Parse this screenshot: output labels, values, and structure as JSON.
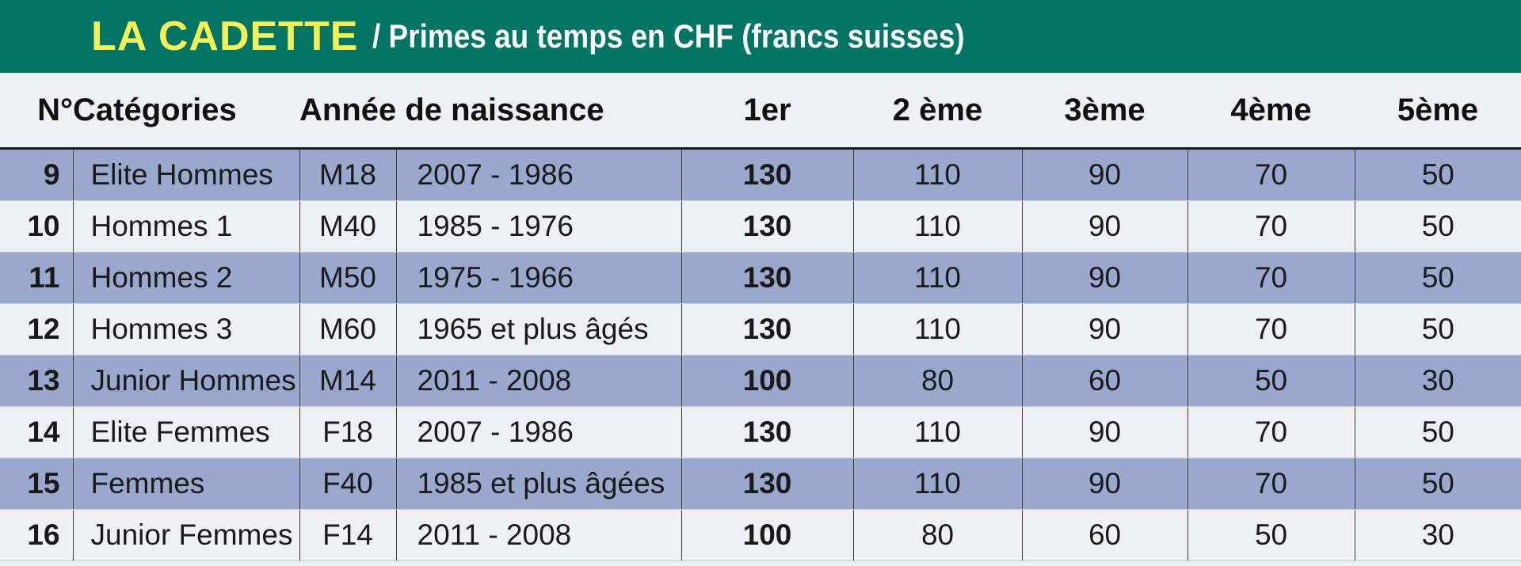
{
  "title": {
    "main": "LA CADETTE",
    "sub": "/ Primes au temps en CHF (francs suisses)"
  },
  "headers": {
    "num": "N°",
    "category": "Catégories",
    "birth_year": "Année de naissance",
    "p1": "1er",
    "p2": "2 ème",
    "p3": "3ème",
    "p4": "4ème",
    "p5": "5ème"
  },
  "rows": [
    {
      "num": "9",
      "category": "Elite Hommes",
      "code": "M18",
      "years": "2007 - 1986",
      "p1": "130",
      "p2": "110",
      "p3": "90",
      "p4": "70",
      "p5": "50"
    },
    {
      "num": "10",
      "category": "Hommes 1",
      "code": "M40",
      "years": "1985 - 1976",
      "p1": "130",
      "p2": "110",
      "p3": "90",
      "p4": "70",
      "p5": "50"
    },
    {
      "num": "11",
      "category": "Hommes 2",
      "code": "M50",
      "years": "1975 - 1966",
      "p1": "130",
      "p2": "110",
      "p3": "90",
      "p4": "70",
      "p5": "50"
    },
    {
      "num": "12",
      "category": "Hommes 3",
      "code": "M60",
      "years": "1965 et plus âgés",
      "p1": "130",
      "p2": "110",
      "p3": "90",
      "p4": "70",
      "p5": "50"
    },
    {
      "num": "13",
      "category": "Junior Hommes",
      "code": "M14",
      "years": "2011 - 2008",
      "p1": "100",
      "p2": "80",
      "p3": "60",
      "p4": "50",
      "p5": "30"
    },
    {
      "num": "14",
      "category": "Elite Femmes",
      "code": "F18",
      "years": "2007 - 1986",
      "p1": "130",
      "p2": "110",
      "p3": "90",
      "p4": "70",
      "p5": "50"
    },
    {
      "num": "15",
      "category": "Femmes",
      "code": "F40",
      "years": "1985 et plus âgées",
      "p1": "130",
      "p2": "110",
      "p3": "90",
      "p4": "70",
      "p5": "50"
    },
    {
      "num": "16",
      "category": "Junior Femmes",
      "code": "F14",
      "years": "2011 - 2008",
      "p1": "100",
      "p2": "80",
      "p3": "60",
      "p4": "50",
      "p5": "30"
    }
  ],
  "colors": {
    "title_bg": "#007565",
    "title_main": "#f6ef55",
    "title_sub": "#ffffff",
    "row_band": "#99a8cc",
    "row_plain": "#eef0f3"
  }
}
